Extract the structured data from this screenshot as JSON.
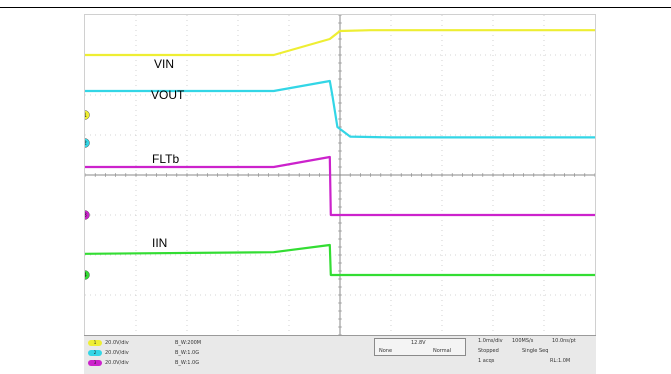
{
  "chart_data": {
    "type": "line",
    "title": "",
    "xlabel": "",
    "ylabel": "",
    "grid": true,
    "divisions": {
      "x": 10,
      "y": 8
    },
    "x": [
      0,
      3.7,
      4.8,
      4.82,
      5.0,
      10
    ],
    "series": [
      {
        "name": "VIN",
        "color": "#eeee33",
        "points": [
          [
            0,
            7.0
          ],
          [
            3.7,
            7.0
          ],
          [
            4.8,
            7.4
          ],
          [
            5.0,
            7.6
          ],
          [
            5.6,
            7.62
          ],
          [
            10,
            7.62
          ]
        ]
      },
      {
        "name": "VOUT",
        "color": "#33d6e6",
        "points": [
          [
            0,
            6.1
          ],
          [
            3.7,
            6.1
          ],
          [
            4.8,
            6.35
          ],
          [
            4.85,
            6.0
          ],
          [
            4.95,
            5.2
          ],
          [
            5.2,
            4.96
          ],
          [
            6.0,
            4.94
          ],
          [
            10,
            4.94
          ]
        ]
      },
      {
        "name": "FLTb",
        "color": "#cc22cc",
        "points": [
          [
            0,
            4.2
          ],
          [
            3.7,
            4.2
          ],
          [
            4.8,
            4.45
          ],
          [
            4.82,
            3.0
          ],
          [
            5.0,
            3.0
          ],
          [
            10,
            3.0
          ]
        ]
      },
      {
        "name": "IIN",
        "color": "#33dd33",
        "points": [
          [
            0,
            2.03
          ],
          [
            3.7,
            2.07
          ],
          [
            4.8,
            2.25
          ],
          [
            4.82,
            1.5
          ],
          [
            5.0,
            1.5
          ],
          [
            10,
            1.5
          ]
        ]
      }
    ],
    "channel_markers": [
      {
        "label": "1",
        "color": "#eeee33",
        "level": 5.5
      },
      {
        "label": "2",
        "color": "#33d6e6",
        "level": 4.8
      },
      {
        "label": "3",
        "color": "#cc22cc",
        "level": 3.0
      },
      {
        "label": "4",
        "color": "#33dd33",
        "level": 1.5
      }
    ],
    "annotations": [
      "VIN",
      "VOUT",
      "FLTb",
      "IIN"
    ]
  },
  "status_bar": {
    "channels": [
      {
        "pill": "1",
        "scale": "20.0V/div",
        "bw": "B_W:200M",
        "color": "#eeee33"
      },
      {
        "pill": "2",
        "scale": "20.0V/div",
        "bw": "B_W:1.0G",
        "color": "#33d6e6"
      },
      {
        "pill": "3",
        "scale": "20.0V/div",
        "bw": "B_W:1.0G",
        "color": "#cc22cc"
      }
    ],
    "trigger": {
      "level": "12.8V",
      "mode_left": "None",
      "mode_right": "Normal"
    },
    "acquisition": {
      "timebase": "1.0ms/div",
      "sample_rate": "100MS/s",
      "resolution": "10.0ns/pt",
      "state": "Stopped",
      "sequence": "Single Seq",
      "acqs": "1 acqs",
      "record_length": "RL:1.0M"
    }
  }
}
